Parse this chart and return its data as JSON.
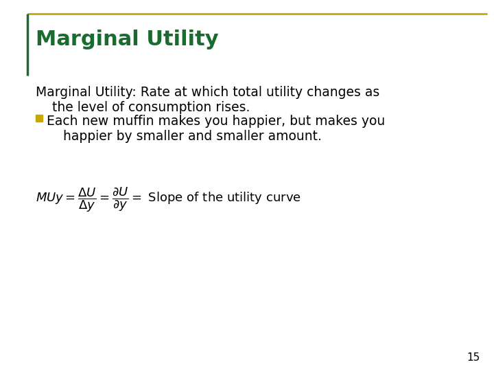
{
  "title": "Marginal Utility",
  "title_color": "#1a6b30",
  "title_fontsize": 22,
  "background_color": "#ffffff",
  "border_color_gold": "#c8a800",
  "border_color_green": "#1a6b30",
  "body_text_1_line1": "Marginal Utility: Rate at which total utility changes as",
  "body_text_1_line2": "    the level of consumption rises.",
  "bullet_text_line1": "Each new muffin makes you happier, but makes you",
  "bullet_text_line2": "    happier by smaller and smaller amount.",
  "bullet_color": "#c8a800",
  "body_fontsize": 13.5,
  "formula_fontsize": 13,
  "page_number": "15",
  "page_number_fontsize": 11
}
